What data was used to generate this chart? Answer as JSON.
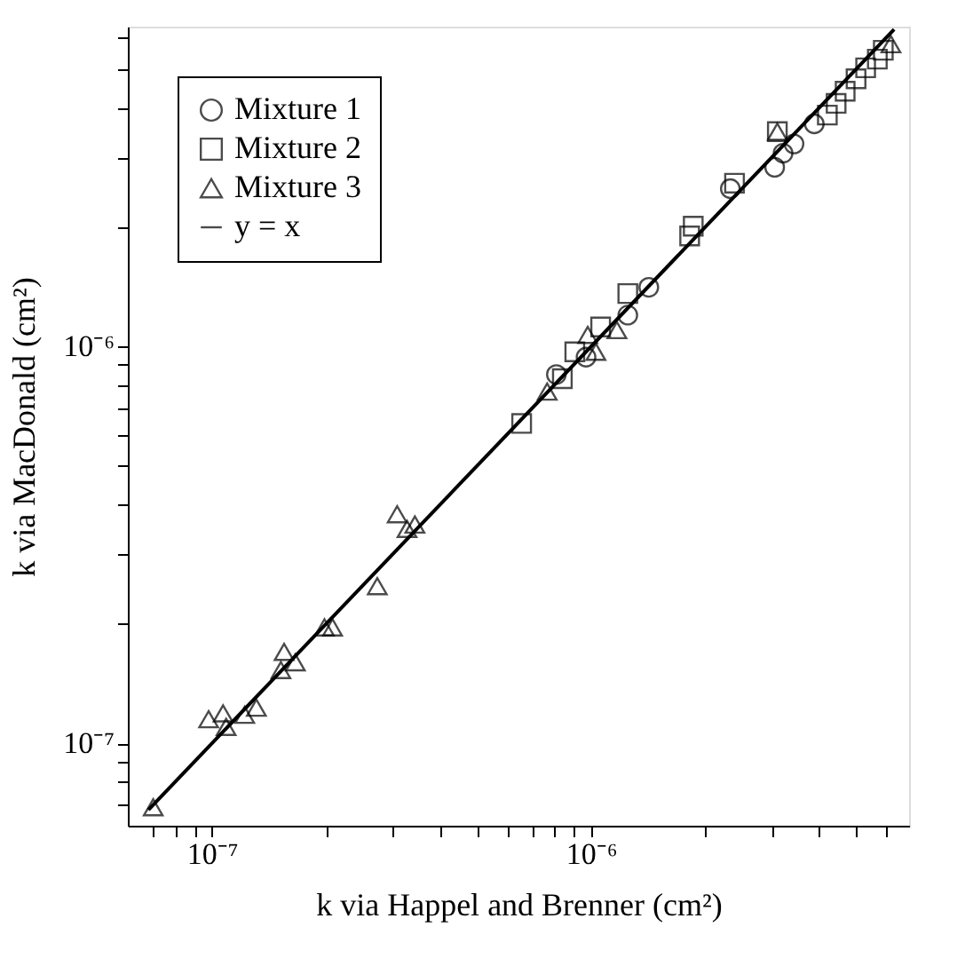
{
  "chart_data": {
    "type": "scatter",
    "xlabel": "k via Happel and Brenner (cm²)",
    "ylabel": "k via MacDonald (cm²)",
    "log": "xy",
    "grid": false,
    "legend": "top left",
    "xlim": [
      6e-08,
      6.9e-06
    ],
    "ylim": [
      6.2e-08,
      6.4e-06
    ],
    "xticks": [
      {
        "value": 7e-08,
        "label": null
      },
      {
        "value": 8e-08,
        "label": null
      },
      {
        "value": 9e-08,
        "label": null
      },
      {
        "value": 1e-07,
        "label": "10⁻⁷"
      },
      {
        "value": 2e-07,
        "label": null
      },
      {
        "value": 3e-07,
        "label": null
      },
      {
        "value": 4e-07,
        "label": null
      },
      {
        "value": 5e-07,
        "label": null
      },
      {
        "value": 6e-07,
        "label": null
      },
      {
        "value": 7e-07,
        "label": null
      },
      {
        "value": 8e-07,
        "label": null
      },
      {
        "value": 9e-07,
        "label": null
      },
      {
        "value": 1e-06,
        "label": "10⁻⁶"
      },
      {
        "value": 2e-06,
        "label": null
      },
      {
        "value": 3e-06,
        "label": null
      },
      {
        "value": 4e-06,
        "label": null
      },
      {
        "value": 5e-06,
        "label": null
      },
      {
        "value": 6e-06,
        "label": null
      }
    ],
    "yticks": [
      {
        "value": 7e-08,
        "label": null
      },
      {
        "value": 8e-08,
        "label": null
      },
      {
        "value": 9e-08,
        "label": null
      },
      {
        "value": 1e-07,
        "label": "10⁻⁷"
      },
      {
        "value": 2e-07,
        "label": null
      },
      {
        "value": 3e-07,
        "label": null
      },
      {
        "value": 4e-07,
        "label": null
      },
      {
        "value": 5e-07,
        "label": null
      },
      {
        "value": 6e-07,
        "label": null
      },
      {
        "value": 7e-07,
        "label": null
      },
      {
        "value": 8e-07,
        "label": null
      },
      {
        "value": 9e-07,
        "label": null
      },
      {
        "value": 1e-06,
        "label": "10⁻⁶"
      },
      {
        "value": 2e-06,
        "label": null
      },
      {
        "value": 3e-06,
        "label": null
      },
      {
        "value": 4e-06,
        "label": null
      },
      {
        "value": 5e-06,
        "label": null
      },
      {
        "value": 6e-06,
        "label": null
      }
    ],
    "series": [
      {
        "name": "Mixture 1",
        "type": "scatter",
        "marker": "circle",
        "color": "#000000",
        "x": [
          9.7e-07,
          8.1e-07,
          1.25e-06,
          1.42e-06,
          2.33e-06,
          3.05e-06,
          3.21e-06,
          3.43e-06,
          3.88e-06
        ],
        "values": [
          9.4e-07,
          8.5e-07,
          1.2e-06,
          1.41e-06,
          2.5e-06,
          2.83e-06,
          3.07e-06,
          3.24e-06,
          3.64e-06
        ]
      },
      {
        "name": "Mixture 2",
        "type": "scatter",
        "marker": "square",
        "color": "#000000",
        "x": [
          6.56e-07,
          8.4e-07,
          9.06e-07,
          1.06e-06,
          1.25e-06,
          1.82e-06,
          1.86e-06,
          2.39e-06,
          3.1e-06,
          4.2e-06,
          4.43e-06,
          4.68e-06,
          5e-06,
          5.3e-06,
          5.69e-06,
          5.9e-06
        ],
        "values": [
          6.4e-07,
          8.3e-07,
          9.7e-07,
          1.12e-06,
          1.36e-06,
          1.9e-06,
          2.01e-06,
          2.58e-06,
          3.48e-06,
          3.83e-06,
          4.1e-06,
          4.4e-06,
          4.73e-06,
          5.04e-06,
          5.3e-06,
          5.58e-06
        ]
      },
      {
        "name": "Mixture 3",
        "type": "scatter",
        "marker": "triangle",
        "color": "#000000",
        "x": [
          7e-08,
          9.8e-08,
          1.07e-07,
          1.09e-07,
          1.22e-07,
          1.31e-07,
          1.52e-07,
          1.55e-07,
          1.66e-07,
          1.98e-07,
          2.08e-07,
          2.73e-07,
          3.08e-07,
          3.27e-07,
          3.43e-07,
          7.66e-07,
          9.8e-07,
          1.03e-06,
          1.17e-06,
          3.1e-06,
          6.18e-06
        ],
        "values": [
          6.9e-08,
          1.15e-07,
          1.19e-07,
          1.1e-07,
          1.18e-07,
          1.23e-07,
          1.53e-07,
          1.7e-07,
          1.6e-07,
          1.96e-07,
          1.96e-07,
          2.49e-07,
          3.78e-07,
          3.47e-07,
          3.56e-07,
          7.7e-07,
          1.07e-06,
          9.7e-07,
          1.1e-06,
          3.48e-06,
          5.78e-06
        ]
      },
      {
        "name": "y = x",
        "type": "line",
        "line_style": "solid",
        "color": "#000000",
        "x": [
          6.8e-08,
          6.3e-06
        ],
        "values": [
          6.8e-08,
          6.3e-06
        ]
      }
    ]
  }
}
